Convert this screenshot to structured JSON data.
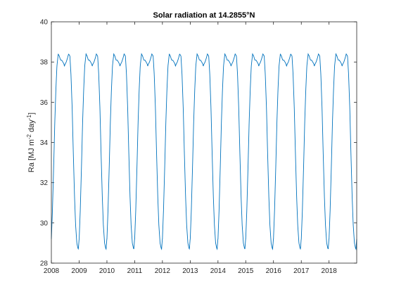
{
  "chart_data": {
    "type": "line",
    "title": "Solar radiation at 14.2855°N",
    "xlabel": "",
    "ylabel": {
      "prefix": "Ra [MJ m",
      "exp1": "-2",
      "mid": " day",
      "exp2": "-1",
      "suffix": "]"
    },
    "xlim": [
      "2008-01-01",
      "2018-12-31"
    ],
    "ylim": [
      28,
      40
    ],
    "x_ticks": [
      "2008",
      "2009",
      "2010",
      "2011",
      "2012",
      "2013",
      "2014",
      "2015",
      "2016",
      "2017",
      "2018"
    ],
    "y_ticks": [
      28,
      30,
      32,
      34,
      36,
      38,
      40
    ],
    "grid": false,
    "legend": "none",
    "series": [
      {
        "color": "#0072BD",
        "description": "Daily extraterrestrial radiation, repeating every year",
        "annual_profile": {
          "day_of_year": [
            1,
            15,
            32,
            46,
            60,
            74,
            91,
            105,
            121,
            135,
            152,
            166,
            172,
            182,
            196,
            213,
            227,
            244,
            258,
            274,
            288,
            305,
            319,
            335,
            349,
            355,
            365
          ],
          "value": [
            29.2,
            30.6,
            32.9,
            35.0,
            36.6,
            37.8,
            38.4,
            38.3,
            38.1,
            38.1,
            38.0,
            37.9,
            37.8,
            37.9,
            38.0,
            38.2,
            38.4,
            38.3,
            37.4,
            35.7,
            33.6,
            31.3,
            29.9,
            29.0,
            28.75,
            28.7,
            29.2
          ]
        }
      }
    ],
    "years": [
      2008,
      2009,
      2010,
      2011,
      2012,
      2013,
      2014,
      2015,
      2016,
      2017,
      2018
    ]
  }
}
